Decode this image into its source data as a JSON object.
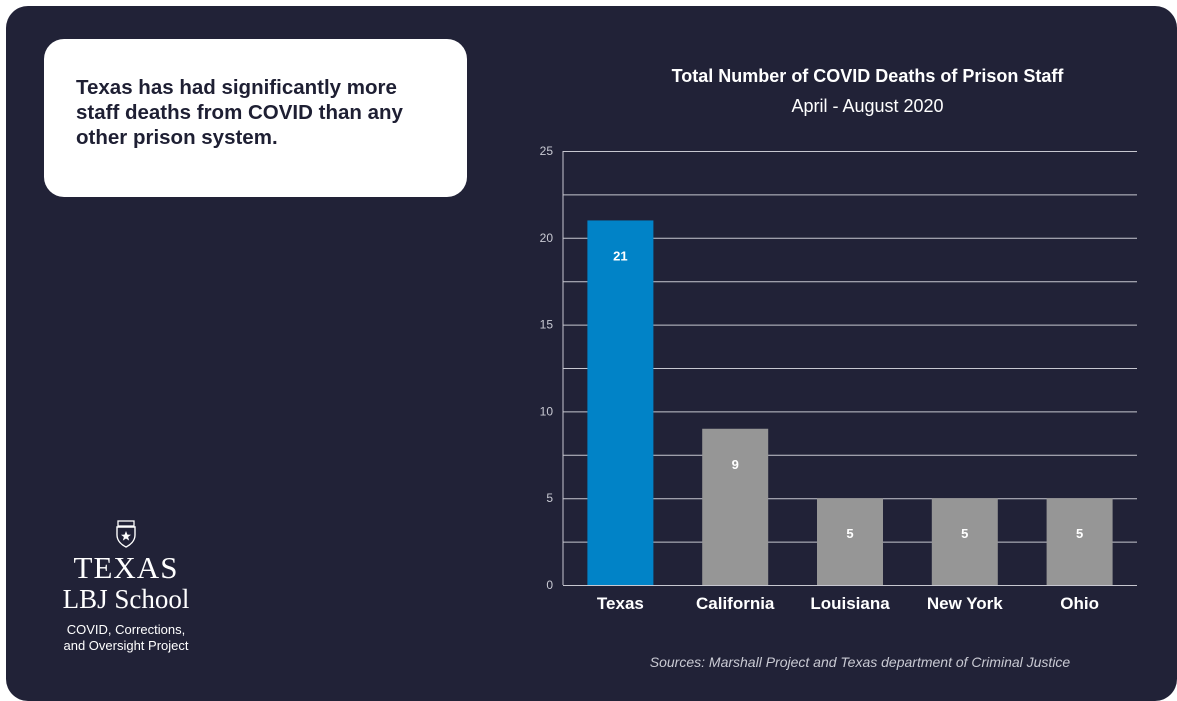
{
  "callout": {
    "text": "Texas has had significantly more staff deaths from COVID than any other prison system."
  },
  "logo": {
    "line1": "TEXAS",
    "line2": "LBJ School",
    "line3": "COVID, Corrections,",
    "line4": "and Oversight Project",
    "icon": "ut-seal-icon"
  },
  "colors": {
    "background": "#212237",
    "highlight_bar": "#0183c7",
    "other_bar": "#969696",
    "gridline": "#c7c7d0"
  },
  "chart_data": {
    "type": "bar",
    "title": "Total Number of COVID Deaths of Prison Staff",
    "subtitle": "April - August 2020",
    "categories": [
      "Texas",
      "California",
      "Louisiana",
      "New York",
      "Ohio"
    ],
    "values": [
      21,
      9,
      5,
      5,
      5
    ],
    "data_labels": [
      "21",
      "9",
      "5",
      "5",
      "5"
    ],
    "yticks": [
      0,
      5,
      10,
      15,
      20,
      25
    ],
    "ylim": [
      0,
      25
    ],
    "grid": true,
    "legend": "none",
    "xlabel": "",
    "ylabel": ""
  },
  "source": "Sources: Marshall Project and Texas department of Criminal Justice"
}
